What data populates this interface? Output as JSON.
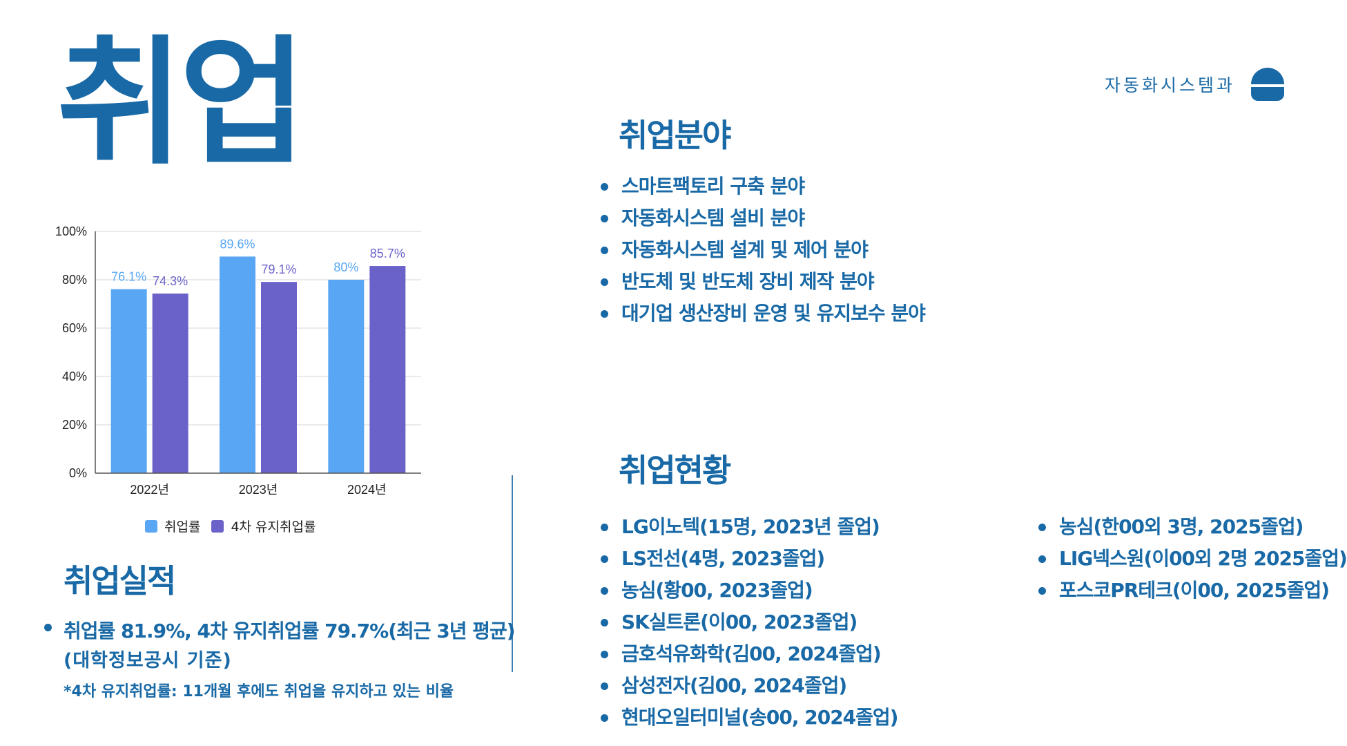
{
  "header": {
    "title": "취업",
    "department": "자동화시스템과",
    "logo_icon": "person-icon",
    "accent_color": "#1869a6"
  },
  "fields": {
    "title": "취업분야",
    "items": [
      "스마트팩토리 구축 분야",
      "자동화시스템 설비 분야",
      "자동화시스템 설계 및 제어 분야",
      "반도체 및 반도체 장비 제작 분야",
      "대기업 생산장비 운영 및 유지보수 분야"
    ]
  },
  "status": {
    "title": "취업현황",
    "left_items": [
      "LG이노텍(15명, 2023년 졸업)",
      "LS전선(4명, 2023졸업)",
      "농심(황00, 2023졸업)",
      "SK실트론(이00, 2023졸업)",
      "금호석유화학(김00, 2024졸업)",
      "삼성전자(김00, 2024졸업)",
      "현대오일터미널(송00, 2024졸업)"
    ],
    "right_items": [
      "농심(한00외 3명, 2025졸업)",
      "LIG넥스원(이00외 2명 2025졸업)",
      "포스코PR테크(이00, 2025졸업)"
    ]
  },
  "performance": {
    "title": "취업실적",
    "line1": "취업률 81.9%, 4차 유지취업률 79.7%(최근 3년 평균)",
    "line2": "(대학정보공시 기준)",
    "note": "*4차 유지취업률: 11개월 후에도 취업을 유지하고 있는 비율"
  },
  "chart_data": {
    "type": "bar",
    "categories": [
      "2022년",
      "2023년",
      "2024년"
    ],
    "series": [
      {
        "name": "취업률",
        "values": [
          76.1,
          89.6,
          80
        ],
        "labels": [
          "76.1%",
          "89.6%",
          "80%"
        ],
        "color": "#59a6f5"
      },
      {
        "name": "4차 유지취업률",
        "values": [
          74.3,
          79.1,
          85.7
        ],
        "labels": [
          "74.3%",
          "79.1%",
          "85.7%"
        ],
        "color": "#6a62c9"
      }
    ],
    "y_ticks": [
      "0%",
      "20%",
      "40%",
      "60%",
      "80%",
      "100%"
    ],
    "ylim": [
      0,
      100
    ],
    "grid": true,
    "legend_position": "bottom"
  }
}
